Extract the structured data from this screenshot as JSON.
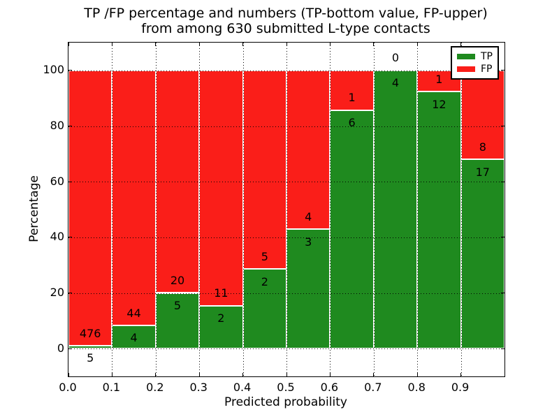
{
  "title": {
    "line1": "TP /FP percentage and numbers (TP-bottom value, FP-upper)",
    "line2": "from among 630 submitted L-type contacts"
  },
  "chart_data": {
    "type": "bar",
    "stacked": true,
    "title": "TP /FP percentage and numbers (TP-bottom value, FP-upper) from among 630 submitted L-type contacts",
    "xlabel": "Predicted probability",
    "ylabel": "Percentage",
    "total_submitted": 630,
    "bin_edges": [
      0.0,
      0.1,
      0.2,
      0.3,
      0.4,
      0.5,
      0.6,
      0.7,
      0.8,
      0.9,
      1.0
    ],
    "xtick_labels": [
      "0.0",
      "0.1",
      "0.2",
      "0.3",
      "0.4",
      "0.5",
      "0.6",
      "0.7",
      "0.8",
      "0.9"
    ],
    "ytick_values": [
      0,
      20,
      40,
      60,
      80,
      100
    ],
    "ytick_labels": [
      "0",
      "20",
      "40",
      "60",
      "80",
      "100"
    ],
    "xlim": [
      0,
      1
    ],
    "ylim": [
      -10,
      110
    ],
    "grid": true,
    "grid_style": "dotted",
    "series": [
      {
        "name": "TP",
        "color": "#1f8a1f",
        "counts": [
          5,
          4,
          5,
          2,
          2,
          3,
          6,
          4,
          12,
          17
        ]
      },
      {
        "name": "FP",
        "color": "#fa1e19",
        "counts": [
          476,
          44,
          20,
          11,
          5,
          4,
          1,
          0,
          1,
          8
        ]
      }
    ],
    "tp_percent_heights": [
      1.04,
      8.33,
      20.0,
      15.38,
      28.57,
      42.86,
      85.71,
      100.0,
      92.31,
      68.0
    ],
    "legend": {
      "position": "upper right",
      "entries": [
        {
          "label": "TP",
          "color": "#1f8a1f"
        },
        {
          "label": "FP",
          "color": "#fa1e19"
        }
      ]
    }
  },
  "colors": {
    "background": "#ffffff",
    "text": "#000000",
    "axis": "#000000"
  }
}
